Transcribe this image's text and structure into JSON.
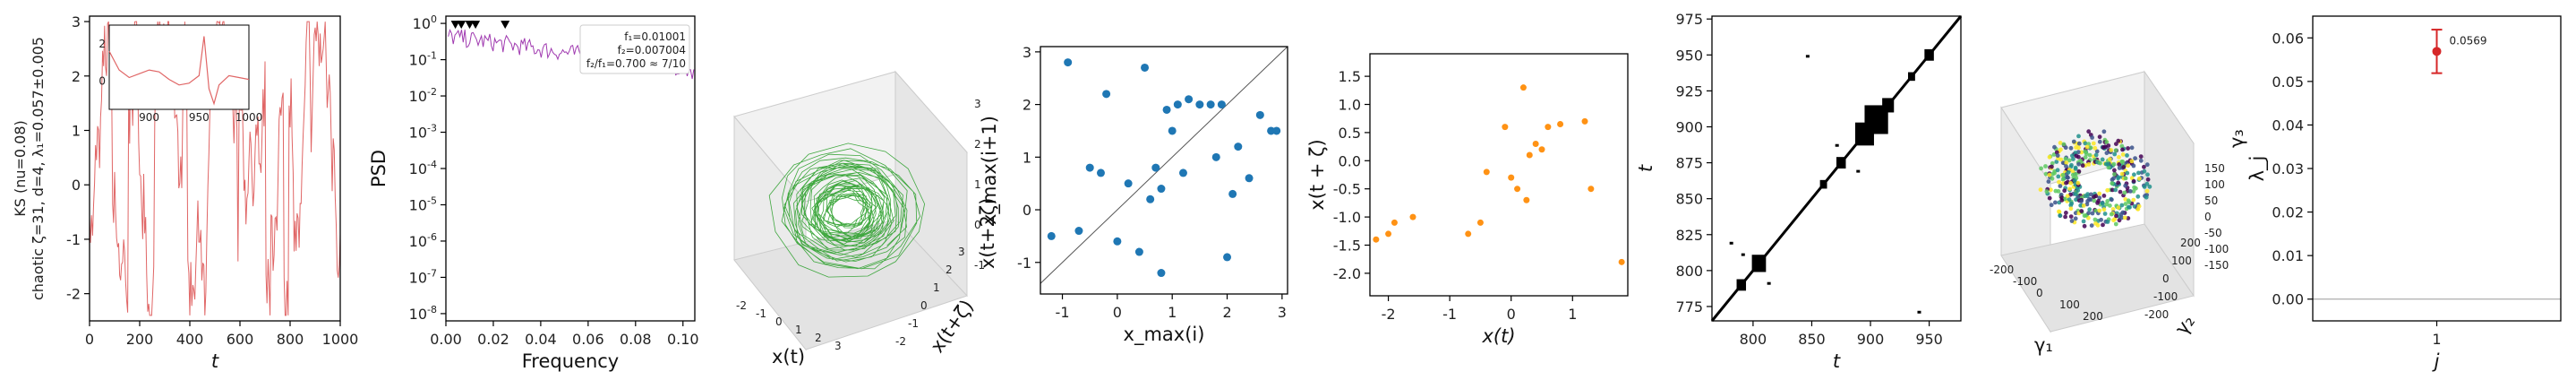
{
  "chart_data": [
    {
      "type": "line",
      "panel": "timeseries",
      "ylabel_lines": [
        "KS (nu=0.08)",
        "chaotic  ζ=31, d=4, λ₁=0.057±0.005"
      ],
      "xlabel": "t",
      "xlim": [
        0,
        1000
      ],
      "ylim": [
        -2.5,
        3.1
      ],
      "xticks": [
        0,
        200,
        400,
        600,
        800,
        1000
      ],
      "yticks": [
        -2,
        -1,
        0,
        1,
        2,
        3
      ],
      "color": "#e06666",
      "inset": {
        "xlim": [
          860,
          1000
        ],
        "ylim": [
          -1.5,
          3
        ],
        "xticks": [
          900,
          950,
          1000
        ],
        "yticks": [
          0,
          2
        ],
        "x": [
          860,
          870,
          880,
          890,
          900,
          910,
          920,
          930,
          940,
          950,
          955,
          960,
          965,
          970,
          980,
          990,
          1000
        ],
        "y": [
          1.6,
          0.6,
          0.2,
          0.4,
          0.6,
          0.5,
          0.1,
          -0.2,
          -0.1,
          0.3,
          2.4,
          -0.4,
          -1.2,
          -0.2,
          0.3,
          0.2,
          0.1
        ]
      }
    },
    {
      "type": "line",
      "panel": "psd",
      "ylabel": "PSD",
      "xlabel": "Frequency",
      "xlim": [
        0,
        0.105
      ],
      "ylog": true,
      "ylim_exp": [
        -8.2,
        0.2
      ],
      "xticks": [
        "0.00",
        "0.02",
        "0.04",
        "0.06",
        "0.08",
        "0.10"
      ],
      "yticks": [
        "10^0",
        "10^-1",
        "10^-2",
        "10^-3",
        "10^-4",
        "10^-5",
        "10^-6",
        "10^-7",
        "10^-8"
      ],
      "peak_markers_x": [
        0.004,
        0.0065,
        0.01001,
        0.0125,
        0.025
      ],
      "annotation": [
        "f₁=0.01001",
        "f₂=0.007004",
        "f₂/f₁=0.700 ≈ 7/10"
      ],
      "color": "#a03ab0"
    },
    {
      "type": "line",
      "panel": "phase-3d",
      "xlabel": "x(t)",
      "ylabel": "x(t+ζ)",
      "zlabel": "x(t+2ζ)",
      "xticks": [
        -2,
        -1,
        0,
        1,
        2,
        3
      ],
      "yticks": [
        -2,
        -1,
        0,
        1,
        2,
        3
      ],
      "zticks": [
        -1,
        0,
        1,
        2,
        3
      ],
      "color": "#2ca02c"
    },
    {
      "type": "scatter",
      "panel": "return-map",
      "xlabel": "x_max(i)",
      "ylabel": "x_max(i+1)",
      "xlim": [
        -1.4,
        3.1
      ],
      "ylim": [
        -1.6,
        3.1
      ],
      "xticks": [
        -1,
        0,
        1,
        2,
        3
      ],
      "yticks": [
        -1,
        0,
        1,
        2,
        3
      ],
      "x": [
        -1.2,
        -0.9,
        -0.7,
        -0.5,
        -0.3,
        -0.2,
        0,
        0.2,
        0.4,
        0.6,
        0.7,
        0.8,
        0.9,
        1,
        1.1,
        1.3,
        1.5,
        1.7,
        1.9,
        2,
        2.2,
        2.4,
        2.6,
        2.8,
        0.5,
        0.8,
        1.2,
        1.8,
        2.1,
        2.9
      ],
      "y": [
        -0.5,
        2.8,
        -0.4,
        0.8,
        0.7,
        2.2,
        -0.6,
        0.5,
        -0.8,
        0.2,
        0.8,
        0.4,
        1.9,
        1.5,
        2,
        2.1,
        2,
        2,
        2,
        -0.9,
        1.2,
        0.6,
        1.8,
        1.5,
        2.7,
        -1.2,
        0.7,
        1.0,
        0.3,
        1.5
      ],
      "color": "#1f77b4"
    },
    {
      "type": "scatter",
      "panel": "lag-plot",
      "xlabel": "x(t)",
      "ylabel": "x(t + ζ)",
      "xlim": [
        -2.3,
        1.9
      ],
      "ylim": [
        -2.4,
        1.9
      ],
      "xticks": [
        -2,
        -1,
        0,
        1
      ],
      "yticks": [
        "-2.0",
        "-1.5",
        "-1.0",
        "-0.5",
        "0.0",
        "0.5",
        "1.0",
        "1.5"
      ],
      "x": [
        -2.2,
        -2,
        -1.9,
        -1.6,
        -0.7,
        -0.5,
        -0.4,
        0,
        0.1,
        0.2,
        0.25,
        0.3,
        0.4,
        0.5,
        0.6,
        0.8,
        1.2,
        1.3,
        1.8,
        -0.1
      ],
      "y": [
        -1.4,
        -1.3,
        -1.1,
        -1,
        -1.3,
        -1.1,
        -0.2,
        -0.3,
        -0.5,
        1.3,
        -0.7,
        0.1,
        0.3,
        0.2,
        0.6,
        0.65,
        0.7,
        -0.5,
        -1.8,
        0.6
      ],
      "color": "#ff9214"
    },
    {
      "type": "heatmap",
      "panel": "recurrence",
      "xlabel": "t",
      "ylabel": "t",
      "xlim": [
        765,
        977
      ],
      "ylim": [
        765,
        977
      ],
      "xticks": [
        800,
        850,
        900,
        950
      ],
      "yticks": [
        775,
        800,
        825,
        850,
        875,
        900,
        925,
        950,
        975
      ]
    },
    {
      "type": "scatter",
      "panel": "embedding-3d",
      "xlabel": "γ₁",
      "ylabel": "γ₂",
      "zlabel": "γ₃",
      "xticks": [
        -200,
        -100,
        0,
        100,
        200
      ],
      "yticks": [
        -200,
        -100,
        0,
        100,
        200
      ],
      "zticks": [
        -150,
        -100,
        -50,
        0,
        50,
        100,
        150
      ],
      "colors": [
        "#440154",
        "#3b528b",
        "#21918c",
        "#5ec962",
        "#fde725"
      ]
    },
    {
      "type": "scatter",
      "panel": "lyapunov",
      "xlabel": "j",
      "ylabel": "λ_j",
      "xlim": [
        0.5,
        1.5
      ],
      "ylim": [
        -0.005,
        0.065
      ],
      "xticks": [
        1
      ],
      "yticks": [
        "0.00",
        "0.01",
        "0.02",
        "0.03",
        "0.04",
        "0.05",
        "0.06"
      ],
      "x": [
        1
      ],
      "y": [
        0.0569
      ],
      "err": [
        0.005
      ],
      "point_label": "0.0569",
      "color": "#d62728"
    }
  ]
}
